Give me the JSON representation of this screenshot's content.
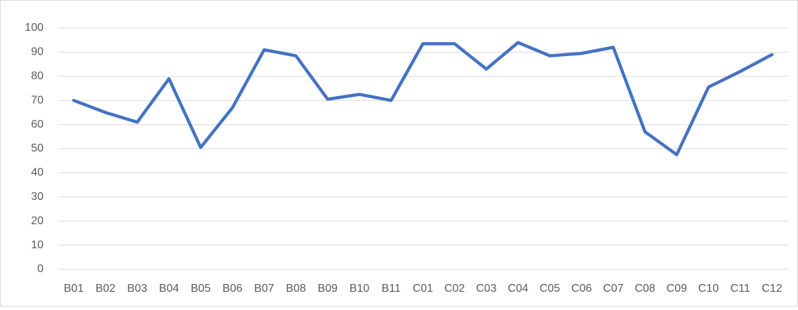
{
  "chart_data": {
    "type": "line",
    "categories": [
      "B01",
      "B02",
      "B03",
      "B04",
      "B05",
      "B06",
      "B07",
      "B08",
      "B09",
      "B10",
      "B11",
      "C01",
      "C02",
      "C03",
      "C04",
      "C05",
      "C06",
      "C07",
      "C08",
      "C09",
      "C10",
      "C11",
      "C12"
    ],
    "values": [
      70,
      65,
      61,
      79,
      50.5,
      67,
      91,
      88.5,
      70.5,
      72.5,
      70,
      93.5,
      93.5,
      83,
      94,
      88.5,
      89.5,
      92,
      57,
      47.5,
      75.5,
      82,
      89
    ],
    "color": "#4472c4",
    "ylim": [
      0,
      100
    ],
    "yticks": [
      0,
      10,
      20,
      30,
      40,
      50,
      60,
      70,
      80,
      90,
      100
    ],
    "grid": true
  }
}
